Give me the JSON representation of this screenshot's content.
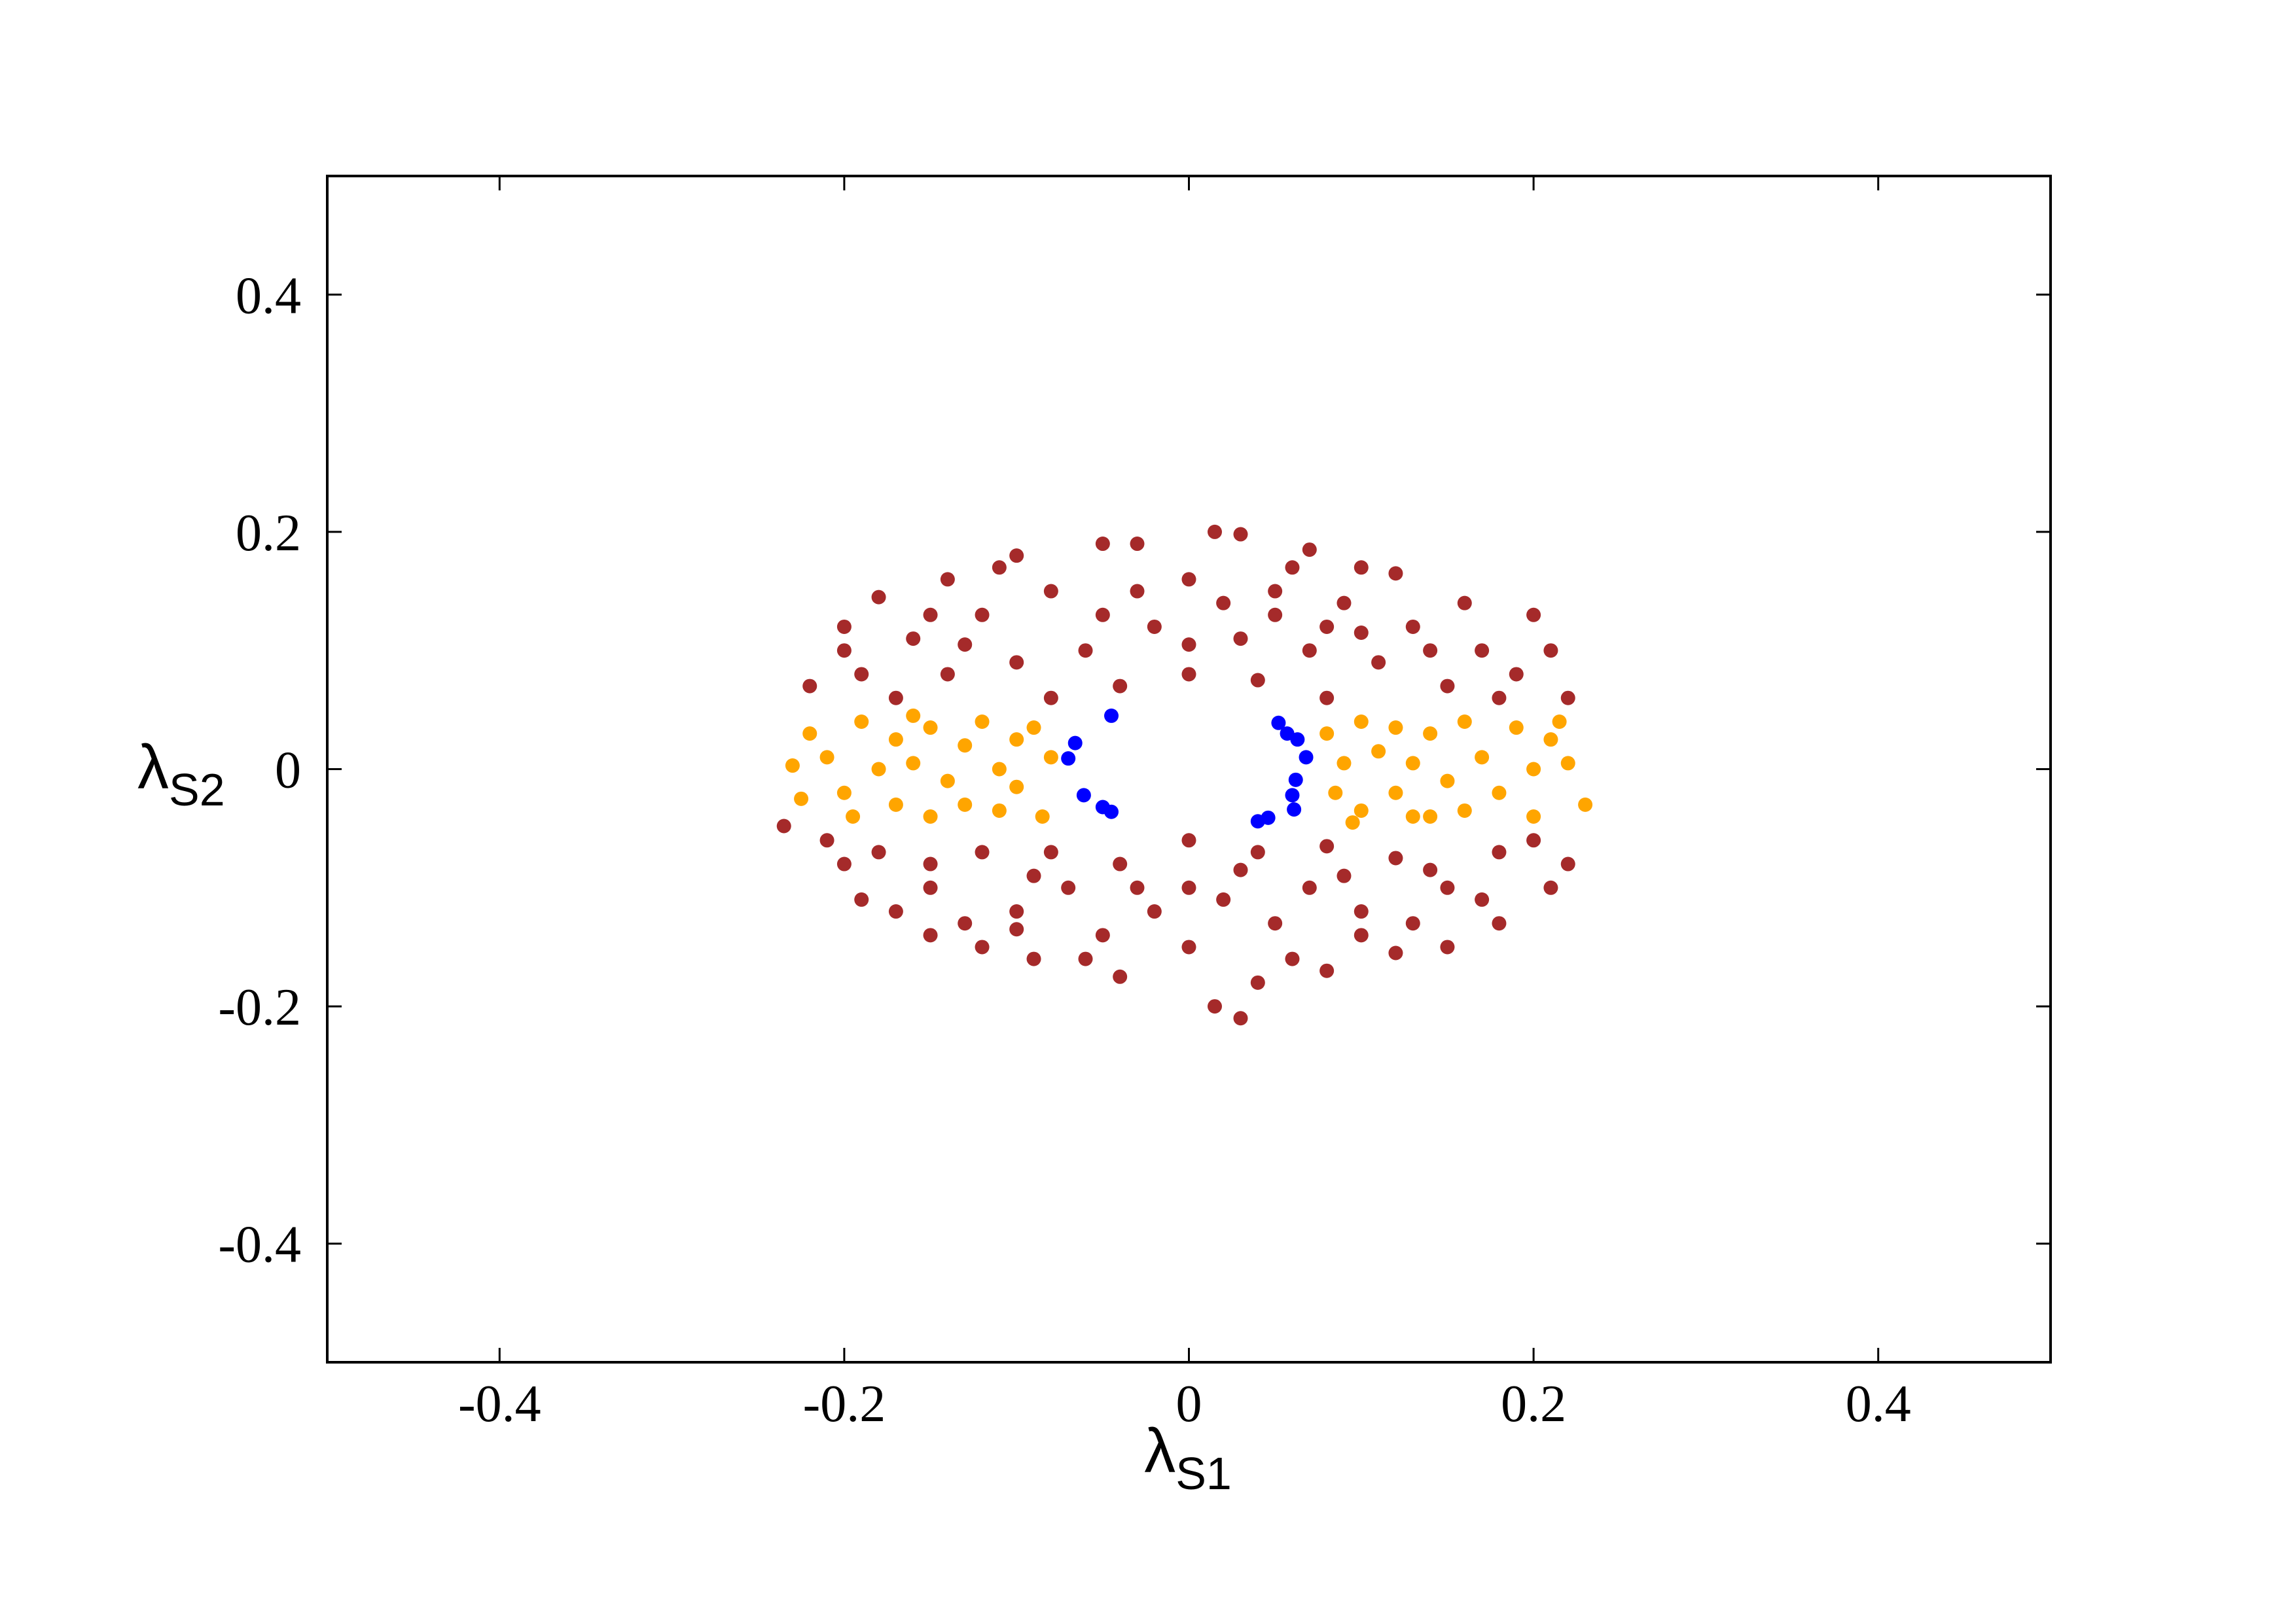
{
  "chart_data": {
    "type": "scatter",
    "xlabel": "λ",
    "xlabel_sub": "S1",
    "ylabel": "λ",
    "ylabel_sub": "S2",
    "xlim": [
      -0.5,
      0.5
    ],
    "ylim": [
      -0.5,
      0.5
    ],
    "xticks": [
      -0.4,
      -0.2,
      0,
      0.2,
      0.4
    ],
    "yticks": [
      -0.4,
      -0.2,
      0,
      0.2,
      0.4
    ],
    "grid": false,
    "series": [
      {
        "color": "#a52a2a",
        "x": [
          0.015,
          0.03,
          -0.03,
          -0.1,
          0.07,
          0.1,
          -0.05,
          0.12,
          -0.14,
          -0.18,
          0.16,
          -0.2,
          0.2,
          -0.22,
          0.22,
          0.0,
          0.05,
          -0.08,
          0.09,
          -0.12,
          0.13,
          -0.16,
          0.17,
          -0.19,
          0.19,
          -0.02,
          0.03,
          -0.06,
          0.07,
          0.11,
          -0.1,
          -0.14,
          0.15,
          -0.04,
          0.04,
          0.0,
          -0.08,
          0.08,
          -0.2,
          0.21,
          0.02,
          -0.11,
          0.06,
          -0.15,
          0.14,
          0.1,
          -0.05,
          0.0,
          -0.17,
          0.18,
          -0.13,
          0.05,
          -0.03,
          0.08,
          0.03,
          0.015,
          0.04,
          -0.04,
          0.08,
          -0.09,
          -0.12,
          0.12,
          -0.15,
          0.15,
          -0.19,
          0.18,
          0.21,
          -0.2,
          -0.235,
          0.22,
          0.0,
          -0.05,
          0.05,
          -0.1,
          0.1,
          -0.15,
          0.15,
          -0.18,
          0.18,
          0.0,
          -0.04,
          0.04,
          -0.08,
          0.08,
          -0.12,
          0.12,
          0.0,
          -0.02,
          0.02,
          -0.07,
          0.07,
          -0.13,
          0.13,
          -0.17,
          0.17,
          0.06,
          -0.06,
          0.1,
          -0.1,
          0.2,
          -0.21,
          0.03,
          -0.03,
          0.09,
          -0.09,
          0.14,
          -0.15
        ],
        "y": [
          0.2,
          0.198,
          0.19,
          0.18,
          0.185,
          0.17,
          0.19,
          0.165,
          0.16,
          0.145,
          0.14,
          0.12,
          0.13,
          0.07,
          0.06,
          0.16,
          0.15,
          0.15,
          0.14,
          0.13,
          0.12,
          0.11,
          0.1,
          0.08,
          0.08,
          0.12,
          0.11,
          0.1,
          0.1,
          0.09,
          0.09,
          0.08,
          0.07,
          0.07,
          0.075,
          0.08,
          0.06,
          0.06,
          0.1,
          0.1,
          0.14,
          0.17,
          0.17,
          0.13,
          0.1,
          0.115,
          0.13,
          0.105,
          0.06,
          0.06,
          0.105,
          0.13,
          0.15,
          0.12,
          -0.21,
          -0.2,
          -0.18,
          -0.175,
          -0.17,
          -0.16,
          -0.15,
          -0.155,
          -0.14,
          -0.15,
          -0.11,
          -0.13,
          -0.1,
          -0.08,
          -0.048,
          -0.08,
          -0.15,
          -0.14,
          -0.13,
          -0.12,
          -0.12,
          -0.1,
          -0.1,
          -0.07,
          -0.07,
          -0.1,
          -0.08,
          -0.07,
          -0.07,
          -0.065,
          -0.07,
          -0.075,
          -0.06,
          -0.12,
          -0.11,
          -0.1,
          -0.1,
          -0.13,
          -0.13,
          -0.12,
          -0.11,
          -0.16,
          -0.16,
          -0.14,
          -0.135,
          -0.06,
          -0.06,
          -0.085,
          -0.1,
          -0.09,
          -0.09,
          -0.085,
          -0.08
        ]
      },
      {
        "color": "#ffa500",
        "x": [
          -0.23,
          -0.225,
          -0.22,
          -0.21,
          -0.2,
          -0.19,
          -0.18,
          -0.17,
          -0.17,
          -0.16,
          -0.15,
          -0.15,
          -0.14,
          -0.13,
          -0.13,
          -0.12,
          -0.11,
          -0.11,
          -0.1,
          -0.1,
          -0.09,
          -0.085,
          -0.08,
          -0.195,
          -0.16,
          0.08,
          0.085,
          0.09,
          0.1,
          0.1,
          0.11,
          0.12,
          0.12,
          0.13,
          0.13,
          0.14,
          0.15,
          0.16,
          0.16,
          0.17,
          0.18,
          0.19,
          0.2,
          0.2,
          0.21,
          0.22,
          0.23,
          0.215,
          0.095,
          0.14
        ],
        "y": [
          0.003,
          -0.025,
          0.03,
          0.01,
          -0.02,
          0.04,
          0.0,
          -0.03,
          0.025,
          0.005,
          -0.04,
          0.035,
          -0.01,
          0.02,
          -0.03,
          0.04,
          0.0,
          -0.035,
          0.025,
          -0.015,
          0.035,
          -0.04,
          0.01,
          -0.04,
          0.045,
          0.03,
          -0.02,
          0.005,
          -0.035,
          0.04,
          0.015,
          -0.02,
          0.035,
          -0.04,
          0.005,
          0.03,
          -0.01,
          0.04,
          -0.035,
          0.01,
          -0.02,
          0.035,
          0.0,
          -0.04,
          0.025,
          0.005,
          -0.03,
          0.04,
          -0.045,
          -0.04
        ]
      },
      {
        "color": "#0000ff",
        "x": [
          -0.045,
          -0.066,
          -0.07,
          -0.061,
          -0.05,
          -0.045,
          0.052,
          0.057,
          0.063,
          0.068,
          0.062,
          0.06,
          0.061,
          0.046,
          0.04
        ],
        "y": [
          0.045,
          0.022,
          0.009,
          -0.022,
          -0.032,
          -0.036,
          0.039,
          0.03,
          0.025,
          0.01,
          -0.009,
          -0.022,
          -0.034,
          -0.041,
          -0.044
        ]
      }
    ]
  }
}
